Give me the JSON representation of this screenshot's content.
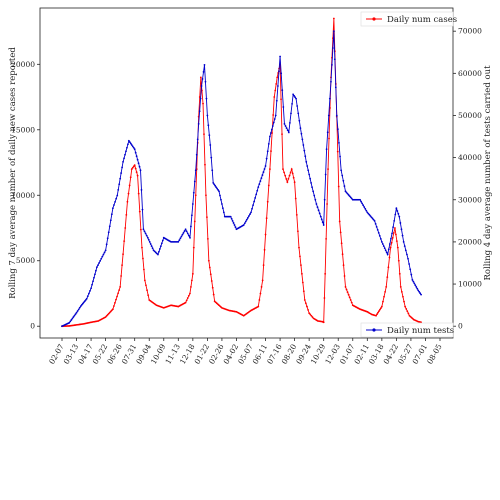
{
  "chart_data": {
    "type": "line",
    "title": "",
    "xlabel": "",
    "ylabel_left": "Rolling 7 day average number of daily new cases reported",
    "ylabel_right": "Rolling 4 day average number of tests carried out",
    "ylim_left": [
      -900,
      24300
    ],
    "ylim_right": [
      -2800,
      75500
    ],
    "yticks_left": [
      0,
      5000,
      10000,
      15000,
      20000
    ],
    "yticks_right": [
      0,
      10000,
      20000,
      30000,
      40000,
      50000,
      60000,
      70000
    ],
    "x_tick_labels": [
      "02-07",
      "03-13",
      "04-17",
      "05-22",
      "06-26",
      "07-31",
      "09-04",
      "10-09",
      "11-13",
      "12-18",
      "01-22",
      "02-26",
      "04-02",
      "05-07",
      "06-11",
      "07-16",
      "08-20",
      "09-24",
      "10-29",
      "12-03",
      "01-07",
      "02-11",
      "03-18",
      "04-22",
      "05-27",
      "07-01",
      "08-05"
    ],
    "grid": false,
    "series": [
      {
        "name": "Daily num cases",
        "axis": "left",
        "color": "#ff0000",
        "legend_position": "top-right",
        "points": [
          [
            0,
            0
          ],
          [
            0.5,
            20
          ],
          [
            1,
            100
          ],
          [
            1.5,
            180
          ],
          [
            2,
            300
          ],
          [
            2.5,
            400
          ],
          [
            3,
            700
          ],
          [
            3.5,
            1300
          ],
          [
            4,
            3000
          ],
          [
            4.2,
            5500
          ],
          [
            4.5,
            9500
          ],
          [
            4.8,
            12000
          ],
          [
            5,
            12300
          ],
          [
            5.2,
            11500
          ],
          [
            5.5,
            6000
          ],
          [
            5.7,
            3500
          ],
          [
            6,
            2000
          ],
          [
            6.5,
            1600
          ],
          [
            7,
            1400
          ],
          [
            7.5,
            1600
          ],
          [
            8,
            1500
          ],
          [
            8.5,
            1800
          ],
          [
            8.8,
            2500
          ],
          [
            9,
            4000
          ],
          [
            9.2,
            10000
          ],
          [
            9.4,
            16000
          ],
          [
            9.55,
            19000
          ],
          [
            9.7,
            17000
          ],
          [
            9.9,
            10000
          ],
          [
            10.1,
            5000
          ],
          [
            10.5,
            1900
          ],
          [
            11,
            1400
          ],
          [
            11.5,
            1200
          ],
          [
            12,
            1100
          ],
          [
            12.5,
            800
          ],
          [
            13,
            1200
          ],
          [
            13.5,
            1500
          ],
          [
            13.8,
            3500
          ],
          [
            14,
            7000
          ],
          [
            14.3,
            12000
          ],
          [
            14.6,
            17500
          ],
          [
            14.8,
            19000
          ],
          [
            15,
            20000
          ],
          [
            15.2,
            12000
          ],
          [
            15.5,
            11000
          ],
          [
            15.8,
            12000
          ],
          [
            16,
            11000
          ],
          [
            16.3,
            6000
          ],
          [
            16.7,
            2000
          ],
          [
            17,
            1000
          ],
          [
            17.3,
            600
          ],
          [
            17.6,
            400
          ],
          [
            17.9,
            350
          ],
          [
            18,
            300
          ],
          [
            18.1,
            4000
          ],
          [
            18.3,
            12000
          ],
          [
            18.5,
            19000
          ],
          [
            18.7,
            23500
          ],
          [
            18.9,
            16000
          ],
          [
            19.1,
            8000
          ],
          [
            19.5,
            3000
          ],
          [
            20,
            1600
          ],
          [
            20.5,
            1300
          ],
          [
            21,
            1100
          ],
          [
            21.3,
            900
          ],
          [
            21.6,
            800
          ],
          [
            22,
            1500
          ],
          [
            22.3,
            3000
          ],
          [
            22.6,
            6000
          ],
          [
            22.9,
            7500
          ],
          [
            23.1,
            6000
          ],
          [
            23.3,
            3000
          ],
          [
            23.6,
            1500
          ],
          [
            23.9,
            800
          ],
          [
            24.2,
            500
          ],
          [
            24.5,
            350
          ],
          [
            24.7,
            300
          ]
        ]
      },
      {
        "name": "Daily num tests",
        "axis": "right",
        "color": "#0000cc",
        "legend_position": "bottom-right",
        "points": [
          [
            0,
            0
          ],
          [
            0.5,
            800
          ],
          [
            1,
            3200
          ],
          [
            1.3,
            4800
          ],
          [
            1.7,
            6500
          ],
          [
            2,
            9000
          ],
          [
            2.4,
            14000
          ],
          [
            3,
            18000
          ],
          [
            3.5,
            28000
          ],
          [
            3.8,
            31000
          ],
          [
            4.2,
            39000
          ],
          [
            4.6,
            44000
          ],
          [
            5,
            42000
          ],
          [
            5.4,
            37000
          ],
          [
            5.6,
            23000
          ],
          [
            5.9,
            21000
          ],
          [
            6.3,
            18000
          ],
          [
            6.6,
            17000
          ],
          [
            7,
            21000
          ],
          [
            7.5,
            20000
          ],
          [
            8,
            20000
          ],
          [
            8.5,
            23000
          ],
          [
            8.8,
            21000
          ],
          [
            9,
            29000
          ],
          [
            9.2,
            37000
          ],
          [
            9.4,
            48000
          ],
          [
            9.6,
            57000
          ],
          [
            9.8,
            62000
          ],
          [
            10,
            50000
          ],
          [
            10.2,
            43000
          ],
          [
            10.4,
            34000
          ],
          [
            10.8,
            32000
          ],
          [
            11.2,
            26000
          ],
          [
            11.6,
            26000
          ],
          [
            12,
            23000
          ],
          [
            12.5,
            24000
          ],
          [
            13,
            27000
          ],
          [
            13.5,
            33000
          ],
          [
            14,
            38000
          ],
          [
            14.3,
            45000
          ],
          [
            14.7,
            50000
          ],
          [
            15,
            64000
          ],
          [
            15.3,
            48000
          ],
          [
            15.6,
            46000
          ],
          [
            15.9,
            55000
          ],
          [
            16.1,
            54000
          ],
          [
            16.4,
            47000
          ],
          [
            16.8,
            39000
          ],
          [
            17.2,
            33000
          ],
          [
            17.5,
            29000
          ],
          [
            17.8,
            26000
          ],
          [
            18,
            24000
          ],
          [
            18.2,
            42000
          ],
          [
            18.5,
            58000
          ],
          [
            18.7,
            70000
          ],
          [
            18.9,
            50000
          ],
          [
            19.2,
            37000
          ],
          [
            19.5,
            32000
          ],
          [
            20,
            30000
          ],
          [
            20.5,
            30000
          ],
          [
            21,
            27000
          ],
          [
            21.5,
            25000
          ],
          [
            22,
            20000
          ],
          [
            22.4,
            17000
          ],
          [
            22.7,
            22000
          ],
          [
            23,
            28000
          ],
          [
            23.2,
            26000
          ],
          [
            23.5,
            20000
          ],
          [
            23.8,
            16000
          ],
          [
            24.1,
            11000
          ],
          [
            24.5,
            8500
          ],
          [
            24.7,
            7500
          ]
        ]
      }
    ]
  }
}
